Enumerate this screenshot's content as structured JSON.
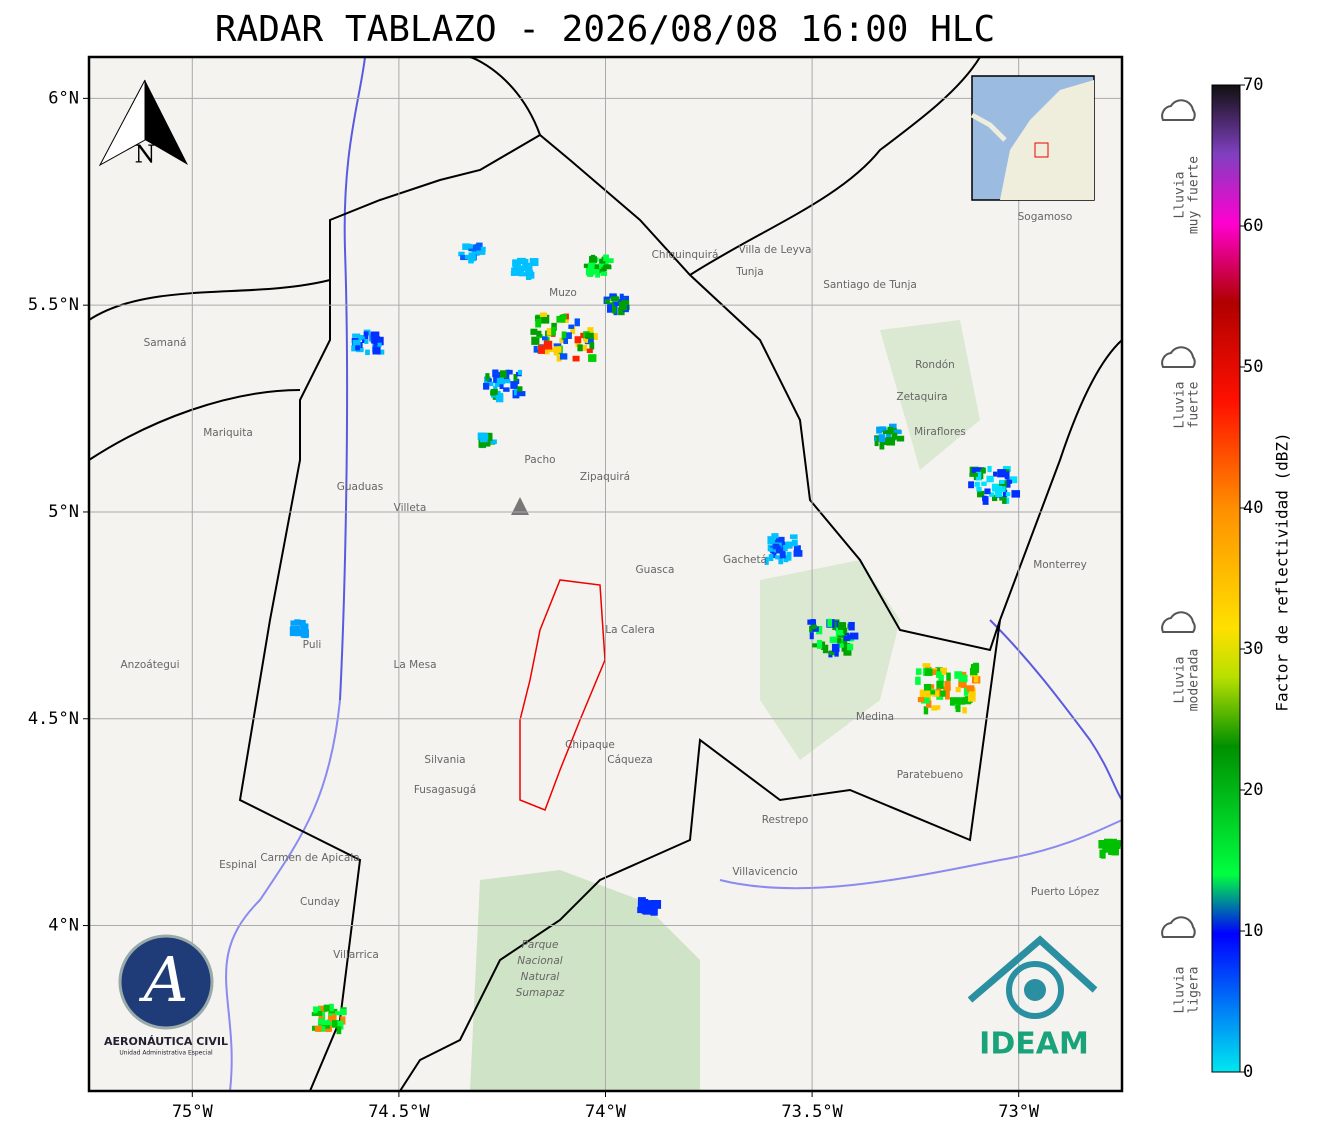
{
  "map": {
    "title": "RADAR TABLAZO - 2026/08/08 16:00 HLC",
    "xlim": [
      -75.25,
      -72.75
    ],
    "ylim": [
      3.6,
      6.1
    ],
    "xticks": [
      {
        "value": -75,
        "label": "75°W"
      },
      {
        "value": -74.5,
        "label": "74.5°W"
      },
      {
        "value": -74,
        "label": "74°W"
      },
      {
        "value": -73.5,
        "label": "73.5°W"
      },
      {
        "value": -73,
        "label": "73°W"
      }
    ],
    "yticks": [
      {
        "value": 4,
        "label": "4°N"
      },
      {
        "value": 4.5,
        "label": "4.5°N"
      },
      {
        "value": 5,
        "label": "5°N"
      },
      {
        "value": 5.5,
        "label": "5.5°N"
      },
      {
        "value": 6,
        "label": "6°N"
      }
    ],
    "north_label": "N",
    "places": [
      "Villavicencio",
      "Zipaquirá",
      "Chiquinquirá",
      "Villa de Leyva",
      "Tunja",
      "Sogamoso",
      "Santiago de Tunja",
      "La Mesa",
      "Fusagasugá",
      "Guaduas",
      "Villeta",
      "Pacho",
      "Muzo",
      "La Calera",
      "Guasca",
      "Gachetá",
      "Silvania",
      "Mariquita",
      "Samaná",
      "Puli",
      "Anzoátegui",
      "Espinal",
      "Carmen de Apicala",
      "Cunday",
      "Villarrica",
      "Restrepo",
      "Cáqueza",
      "Chipaque",
      "Miraflores",
      "Zetaquira",
      "Rondón",
      "Monterrey",
      "Puerto López",
      "Paratebueno",
      "Medina"
    ],
    "park_label": [
      "Parque",
      "Nacional",
      "Natural",
      "Sumapaz"
    ]
  },
  "colorbar": {
    "label": "Factor de reflectividad (dBZ)",
    "lim": [
      0,
      70
    ],
    "ticks": [
      0,
      10,
      20,
      30,
      40,
      50,
      60,
      70
    ]
  },
  "rain_categories": [
    [
      "Lluvia",
      "muy fuerte"
    ],
    [
      "Lluvia",
      "fuerte"
    ],
    [
      "Lluvia",
      "moderada"
    ],
    [
      "Lluvia",
      "ligera"
    ]
  ],
  "logos": {
    "aerocivil": "AERONÁUTICA CIVIL",
    "aerocivil_sub": "Unidad Administrativa Especial",
    "ideam": "IDEAM"
  }
}
